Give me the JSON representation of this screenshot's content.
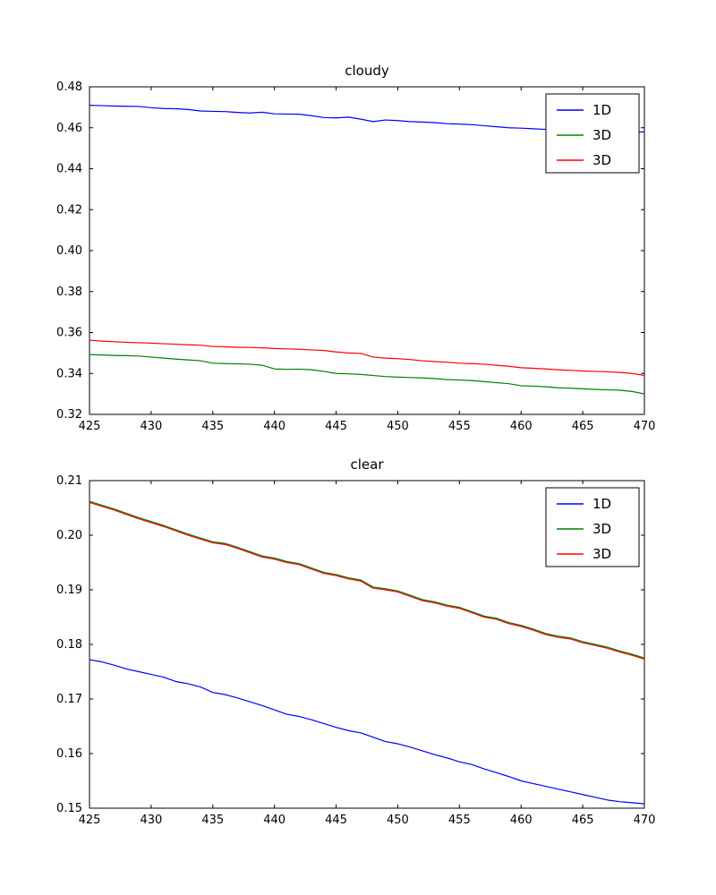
{
  "chart_data": [
    {
      "type": "line",
      "title": "cloudy",
      "xlabel": "",
      "ylabel": "",
      "xlim": [
        425,
        470
      ],
      "ylim": [
        0.32,
        0.48
      ],
      "x_start": 425,
      "x_step": 1,
      "grid": false,
      "legend_position": "upper right",
      "xticks": [
        425,
        430,
        435,
        440,
        445,
        450,
        455,
        460,
        465,
        470
      ],
      "xtick_labels": [
        "425",
        "430",
        "435",
        "440",
        "445",
        "450",
        "455",
        "460",
        "465",
        "470"
      ],
      "yticks": [
        0.32,
        0.34,
        0.36,
        0.38,
        0.4,
        0.42,
        0.44,
        0.46,
        0.48
      ],
      "ytick_labels": [
        "0.32",
        "0.34",
        "0.36",
        "0.38",
        "0.40",
        "0.42",
        "0.44",
        "0.46",
        "0.48"
      ],
      "series": [
        {
          "name": "1D",
          "color": "#0000ff",
          "values": [
            0.471,
            0.4708,
            0.4706,
            0.4705,
            0.4704,
            0.4698,
            0.4694,
            0.4693,
            0.4689,
            0.4682,
            0.468,
            0.4679,
            0.4675,
            0.4672,
            0.4676,
            0.4668,
            0.4667,
            0.4666,
            0.4659,
            0.465,
            0.4648,
            0.4652,
            0.4642,
            0.463,
            0.4638,
            0.4635,
            0.463,
            0.4628,
            0.4625,
            0.462,
            0.4618,
            0.4615,
            0.461,
            0.4605,
            0.46,
            0.4598,
            0.4595,
            0.4592,
            0.459,
            0.459,
            0.4588,
            0.4585,
            0.4583,
            0.458,
            0.4578,
            0.458
          ]
        },
        {
          "name": "3D",
          "color": "#008000",
          "values": [
            0.3492,
            0.349,
            0.3488,
            0.3487,
            0.3485,
            0.348,
            0.3475,
            0.347,
            0.3466,
            0.3462,
            0.345,
            0.3448,
            0.3447,
            0.3445,
            0.344,
            0.3422,
            0.342,
            0.3421,
            0.3418,
            0.341,
            0.34,
            0.3398,
            0.3395,
            0.339,
            0.3385,
            0.3382,
            0.338,
            0.3378,
            0.3375,
            0.337,
            0.3368,
            0.3365,
            0.336,
            0.3355,
            0.335,
            0.334,
            0.3338,
            0.3335,
            0.333,
            0.3328,
            0.3325,
            0.3322,
            0.332,
            0.3318,
            0.3312,
            0.33
          ]
        },
        {
          "name": "3D",
          "color": "#ff0000",
          "values": [
            0.3562,
            0.3558,
            0.3555,
            0.3552,
            0.355,
            0.3548,
            0.3545,
            0.3543,
            0.354,
            0.3538,
            0.3532,
            0.353,
            0.3528,
            0.3527,
            0.3525,
            0.3522,
            0.352,
            0.3518,
            0.3515,
            0.3512,
            0.3505,
            0.35,
            0.3498,
            0.348,
            0.3475,
            0.3472,
            0.3468,
            0.3462,
            0.3458,
            0.3455,
            0.345,
            0.3448,
            0.3445,
            0.344,
            0.3435,
            0.3428,
            0.3425,
            0.3422,
            0.3418,
            0.3415,
            0.3412,
            0.341,
            0.3408,
            0.3405,
            0.34,
            0.339
          ]
        }
      ]
    },
    {
      "type": "line",
      "title": "clear",
      "xlabel": "",
      "ylabel": "",
      "xlim": [
        425,
        470
      ],
      "ylim": [
        0.15,
        0.21
      ],
      "x_start": 425,
      "x_step": 1,
      "grid": false,
      "legend_position": "upper right",
      "xticks": [
        425,
        430,
        435,
        440,
        445,
        450,
        455,
        460,
        465,
        470
      ],
      "xtick_labels": [
        "425",
        "430",
        "435",
        "440",
        "445",
        "450",
        "455",
        "460",
        "465",
        "470"
      ],
      "yticks": [
        0.15,
        0.16,
        0.17,
        0.18,
        0.19,
        0.2,
        0.21
      ],
      "ytick_labels": [
        "0.15",
        "0.16",
        "0.17",
        "0.18",
        "0.19",
        "0.20",
        "0.21"
      ],
      "series": [
        {
          "name": "1D",
          "color": "#0000ff",
          "values": [
            0.1772,
            0.1768,
            0.1762,
            0.1755,
            0.175,
            0.1745,
            0.174,
            0.1732,
            0.1728,
            0.1722,
            0.1712,
            0.1708,
            0.1702,
            0.1695,
            0.1688,
            0.168,
            0.1672,
            0.1668,
            0.1662,
            0.1655,
            0.1648,
            0.1642,
            0.1638,
            0.163,
            0.1622,
            0.1618,
            0.1612,
            0.1605,
            0.1598,
            0.1592,
            0.1585,
            0.158,
            0.1572,
            0.1565,
            0.1558,
            0.155,
            0.1545,
            0.154,
            0.1535,
            0.153,
            0.1525,
            0.152,
            0.1515,
            0.1512,
            0.151,
            0.1508
          ]
        },
        {
          "name": "3D",
          "color": "#008000",
          "values": [
            0.2062,
            0.2055,
            0.2048,
            0.204,
            0.2032,
            0.2025,
            0.2018,
            0.201,
            0.2002,
            0.1995,
            0.1988,
            0.1985,
            0.1978,
            0.197,
            0.1962,
            0.1958,
            0.1952,
            0.1948,
            0.194,
            0.1932,
            0.1928,
            0.1922,
            0.1918,
            0.1905,
            0.1902,
            0.1898,
            0.189,
            0.1882,
            0.1878,
            0.1872,
            0.1868,
            0.186,
            0.1852,
            0.1848,
            0.184,
            0.1835,
            0.1828,
            0.182,
            0.1815,
            0.1812,
            0.1805,
            0.18,
            0.1795,
            0.1788,
            0.1782,
            0.1775
          ]
        },
        {
          "name": "3D",
          "color": "#ff0000",
          "values": [
            0.206,
            0.2053,
            0.2046,
            0.2038,
            0.203,
            0.2023,
            0.2016,
            0.2008,
            0.2,
            0.1993,
            0.1986,
            0.1983,
            0.1976,
            0.1968,
            0.196,
            0.1956,
            0.195,
            0.1946,
            0.1938,
            0.193,
            0.1926,
            0.192,
            0.1916,
            0.1903,
            0.19,
            0.1896,
            0.1888,
            0.188,
            0.1876,
            0.187,
            0.1866,
            0.1858,
            0.185,
            0.1846,
            0.1838,
            0.1833,
            0.1826,
            0.1818,
            0.1813,
            0.181,
            0.1803,
            0.1798,
            0.1793,
            0.1786,
            0.178,
            0.1773
          ]
        }
      ]
    }
  ],
  "legend": {
    "entries": [
      "1D",
      "3D",
      "3D"
    ]
  }
}
